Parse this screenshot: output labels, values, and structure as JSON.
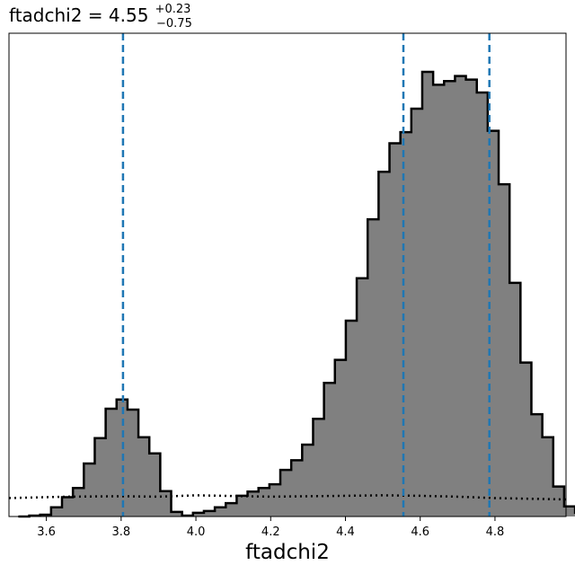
{
  "chart_data": {
    "type": "histogram",
    "title": {
      "prefix": "ftadchi2 = 4.55",
      "upper": "+0.23",
      "lower": "−0.75"
    },
    "xlabel": "ftadchi2",
    "ylabel": "",
    "xlim": [
      3.5,
      4.99
    ],
    "ylim": [
      0,
      1.0
    ],
    "y_ticks_visible": false,
    "grid": false,
    "x_ticks": [
      3.6,
      3.8,
      4.0,
      4.2,
      4.4,
      4.6,
      4.8
    ],
    "x_tick_labels": [
      "3.6",
      "3.8",
      "4.0",
      "4.2",
      "4.4",
      "4.6",
      "4.8"
    ],
    "bin_start": 3.525,
    "bin_width": 0.0292,
    "histogram_values": [
      0.0,
      0.002,
      0.004,
      0.02,
      0.042,
      0.062,
      0.115,
      0.17,
      0.234,
      0.254,
      0.232,
      0.172,
      0.137,
      0.055,
      0.01,
      0.002,
      0.008,
      0.012,
      0.02,
      0.029,
      0.045,
      0.054,
      0.062,
      0.07,
      0.101,
      0.122,
      0.156,
      0.212,
      0.29,
      0.34,
      0.425,
      0.517,
      0.645,
      0.748,
      0.81,
      0.834,
      0.885,
      0.965,
      0.937,
      0.945,
      0.956,
      0.948,
      0.92,
      0.837,
      0.721,
      0.507,
      0.334,
      0.222,
      0.172,
      0.065,
      0.022,
      0.008
    ],
    "histogram_style": {
      "fill": "#808080",
      "edge": "#000000"
    },
    "reference_line": {
      "style": "dotted",
      "color": "#000000",
      "x": [
        3.5,
        3.65,
        3.8,
        3.9,
        4.0,
        4.2,
        4.4,
        4.5,
        4.6,
        4.7,
        4.8,
        4.99
      ],
      "y": [
        0.04,
        0.043,
        0.044,
        0.043,
        0.046,
        0.043,
        0.045,
        0.046,
        0.045,
        0.043,
        0.04,
        0.037
      ]
    },
    "vertical_lines": {
      "style": "dashed",
      "color": "#1f77b4",
      "x": [
        3.805,
        4.555,
        4.785
      ]
    }
  }
}
